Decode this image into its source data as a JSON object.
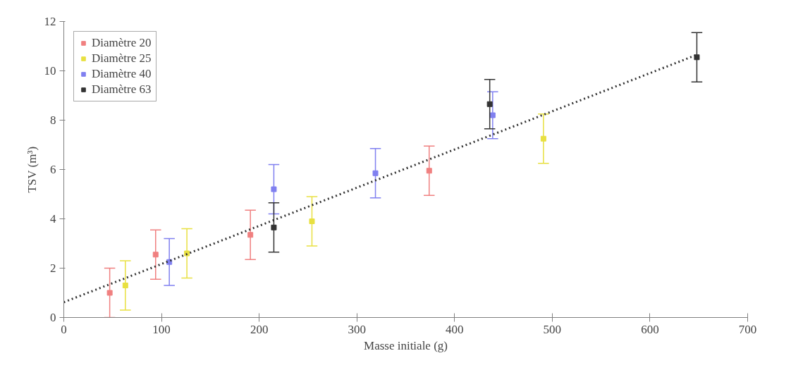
{
  "chart_data": {
    "type": "scatter",
    "xlabel": "Masse initiale (g)",
    "ylabel": "TSV (m³)",
    "xlim": [
      0,
      700
    ],
    "xticks": [
      0,
      100,
      200,
      300,
      400,
      500,
      600,
      700
    ],
    "ylim": [
      0,
      12
    ],
    "yticks": [
      0,
      2,
      4,
      6,
      8,
      10,
      12
    ],
    "grid": false,
    "legend": "top left",
    "marker": "square",
    "series": [
      {
        "name": "Diamètre 20",
        "color": "#f08080",
        "x": [
          47,
          94,
          191,
          374
        ],
        "values": [
          1.0,
          2.55,
          3.35,
          5.95
        ],
        "errors": [
          1,
          1,
          1,
          1
        ]
      },
      {
        "name": "Diamètre 25",
        "color": "#e8e040",
        "x": [
          63,
          126,
          254,
          491
        ],
        "values": [
          1.3,
          2.6,
          3.9,
          7.25
        ],
        "errors": [
          1,
          1,
          1,
          1
        ]
      },
      {
        "name": "Diamètre 40",
        "color": "#8080f0",
        "x": [
          108,
          215,
          319,
          439
        ],
        "values": [
          2.25,
          5.2,
          5.85,
          8.2
        ],
        "errors": [
          0.95,
          1,
          1,
          0.95
        ]
      },
      {
        "name": "Diamètre 63",
        "color": "#333333",
        "x": [
          215,
          436,
          648
        ],
        "values": [
          3.65,
          8.65,
          10.55
        ],
        "errors": [
          1,
          1,
          1
        ]
      },
      {
        "type": "line",
        "color": "#333333",
        "line_style": "dotted",
        "marker": "none",
        "x": [
          0,
          648
        ],
        "values": [
          0.62,
          10.65
        ]
      }
    ]
  }
}
